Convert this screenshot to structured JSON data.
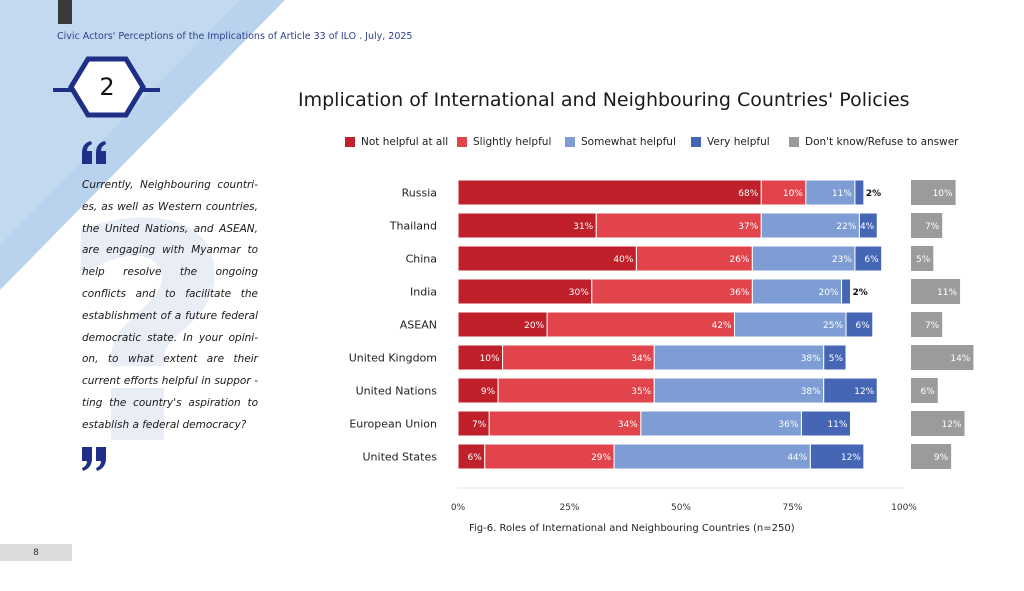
{
  "header": {
    "document_title": "Civic Actors' Perceptions of the Implications of Article 33 of ILO . July, 2025"
  },
  "section": {
    "number": "2"
  },
  "quote": {
    "text": "Currently, Neighbouring countri-es, as well as Western countries, the United Nations, and ASEAN, are engaging with Myanmar to help resolve the ongoing conflicts and to facilitate the establishment of a future federal democratic state. In your opini-on, to what extent are their current efforts helpful in suppor - ting the country's aspiration to establish a federal democracy?"
  },
  "page": {
    "number": "8"
  },
  "colors": {
    "not_helpful": "#c0202a",
    "slightly": "#e2444b",
    "somewhat": "#7d9dd4",
    "very": "#4466b5",
    "dont_know": "#9b9b9b",
    "navy": "#2c3f8c",
    "light_blue": "#a9c8e8"
  },
  "chart_data": {
    "type": "bar",
    "orientation": "horizontal-stacked",
    "title": "Implication of International and Neighbouring Countries' Policies",
    "caption": "Fig-6. Roles of International and Neighbouring Countries (n=250)",
    "categories": [
      "Russia",
      "Thailand",
      "China",
      "India",
      "ASEAN",
      "United Kingdom",
      "United Nations",
      "European Union",
      "United States"
    ],
    "series": [
      {
        "name": "Not helpful at all",
        "values": [
          68,
          31,
          40,
          30,
          20,
          10,
          9,
          7,
          6
        ],
        "labels": [
          "68%",
          "31%",
          "40%",
          "30%",
          "20%",
          "10%",
          "9%",
          "7%",
          "6%"
        ]
      },
      {
        "name": "Slightly helpful",
        "values": [
          10,
          37,
          26,
          36,
          42,
          34,
          35,
          34,
          29
        ],
        "labels": [
          "10%",
          "37%",
          "26%",
          "36%",
          "42%",
          "34%",
          "35%",
          "34%",
          "29%"
        ]
      },
      {
        "name": "Somewhat helpful",
        "values": [
          11,
          22,
          23,
          20,
          25,
          38,
          38,
          36,
          44
        ],
        "labels": [
          "11%",
          "22%",
          "23%",
          "20%",
          "25%",
          "38%",
          "38%",
          "36%",
          "44%"
        ]
      },
      {
        "name": "Very helpful",
        "values": [
          2,
          4,
          6,
          2,
          6,
          5,
          12,
          11,
          12
        ],
        "labels": [
          "2%",
          "4%",
          "6%",
          "2%",
          "6%",
          "5%",
          "12%",
          "11%",
          "12%"
        ]
      },
      {
        "name": "Don't know/Refuse to answer",
        "values": [
          10,
          7,
          5,
          11,
          7,
          14,
          6,
          12,
          9
        ],
        "labels": [
          "10%",
          "7%",
          "5%",
          "11%",
          "7%",
          "14%",
          "6%",
          "12%",
          "9%"
        ]
      }
    ],
    "xticks": [
      "0%",
      "25%",
      "50%",
      "75%",
      "100%"
    ],
    "xlim": [
      0,
      100
    ],
    "grid": false,
    "legend_position": "top"
  }
}
